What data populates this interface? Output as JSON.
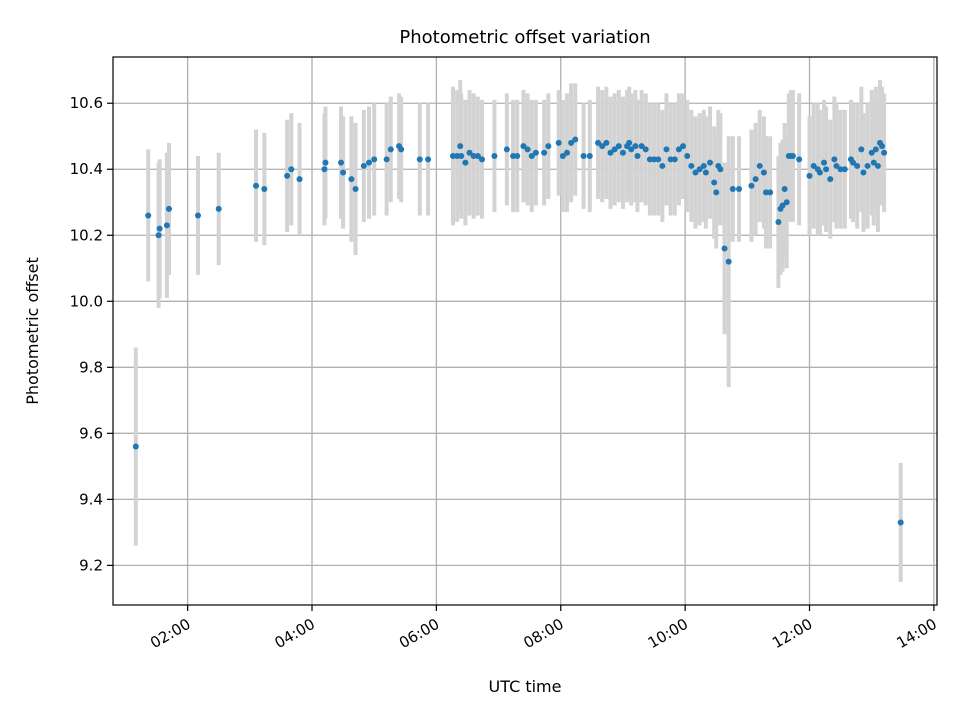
{
  "chart_data": {
    "type": "scatter",
    "title": "Photometric offset variation",
    "xlabel": "UTC time",
    "ylabel": "Photometric offset",
    "x_tick_labels": [
      "02:00",
      "04:00",
      "06:00",
      "08:00",
      "10:00",
      "12:00",
      "14:00"
    ],
    "y_tick_labels": [
      "9.2",
      "9.4",
      "9.6",
      "9.8",
      "10.0",
      "10.2",
      "10.4",
      "10.6"
    ],
    "x_ticks_hours": [
      2,
      4,
      6,
      8,
      10,
      12,
      14
    ],
    "y_ticks": [
      9.2,
      9.4,
      9.6,
      9.8,
      10.0,
      10.2,
      10.4,
      10.6
    ],
    "xlim_hours": [
      0.8,
      14.05
    ],
    "ylim": [
      9.08,
      10.74
    ],
    "grid": true,
    "colors": {
      "point": "#1f77b4",
      "errorbar": "#d3d3d3",
      "grid": "#b0b0b0"
    },
    "series": [
      {
        "x": [
          "01:10",
          "01:22",
          "01:32",
          "01:33",
          "01:40",
          "01:42",
          "02:10",
          "02:30",
          "03:06",
          "03:14",
          "03:36",
          "03:40",
          "03:48",
          "04:12",
          "04:13",
          "04:28",
          "04:30",
          "04:38",
          "04:42",
          "04:50",
          "04:55",
          "05:00",
          "05:12",
          "05:16",
          "05:24",
          "05:26",
          "05:44",
          "05:52",
          "06:16",
          "06:20",
          "06:23",
          "06:24",
          "06:28",
          "06:32",
          "06:36",
          "06:40",
          "06:44",
          "06:56",
          "07:08",
          "07:14",
          "07:18",
          "07:24",
          "07:28",
          "07:32",
          "07:36",
          "07:44",
          "07:48",
          "07:58",
          "08:02",
          "08:06",
          "08:10",
          "08:14",
          "08:22",
          "08:28",
          "08:36",
          "08:40",
          "08:44",
          "08:48",
          "08:52",
          "08:56",
          "09:00",
          "09:04",
          "09:06",
          "09:08",
          "09:12",
          "09:14",
          "09:18",
          "09:22",
          "09:26",
          "09:30",
          "09:34",
          "09:38",
          "09:42",
          "09:46",
          "09:50",
          "09:54",
          "09:58",
          "10:02",
          "10:06",
          "10:10",
          "10:14",
          "10:18",
          "10:20",
          "10:24",
          "10:28",
          "10:30",
          "10:32",
          "10:34",
          "10:38",
          "10:42",
          "10:46",
          "10:52",
          "11:04",
          "11:08",
          "11:12",
          "11:16",
          "11:18",
          "11:22",
          "11:30",
          "11:32",
          "11:34",
          "11:36",
          "11:38",
          "11:40",
          "11:42",
          "11:44",
          "11:50",
          "12:00",
          "12:04",
          "12:08",
          "12:10",
          "12:14",
          "12:16",
          "12:20",
          "12:24",
          "12:26",
          "12:30",
          "12:34",
          "12:40",
          "12:42",
          "12:46",
          "12:50",
          "12:52",
          "12:56",
          "13:00",
          "13:02",
          "13:04",
          "13:06",
          "13:08",
          "13:10",
          "13:12",
          "13:28"
        ],
        "y": [
          9.56,
          10.26,
          10.2,
          10.22,
          10.23,
          10.28,
          10.26,
          10.28,
          10.35,
          10.34,
          10.38,
          10.4,
          10.37,
          10.4,
          10.42,
          10.42,
          10.39,
          10.37,
          10.34,
          10.41,
          10.42,
          10.43,
          10.43,
          10.46,
          10.47,
          10.46,
          10.43,
          10.43,
          10.44,
          10.44,
          10.47,
          10.44,
          10.42,
          10.45,
          10.44,
          10.44,
          10.43,
          10.44,
          10.46,
          10.44,
          10.44,
          10.47,
          10.46,
          10.44,
          10.45,
          10.45,
          10.47,
          10.48,
          10.44,
          10.45,
          10.48,
          10.49,
          10.44,
          10.44,
          10.48,
          10.47,
          10.48,
          10.45,
          10.46,
          10.47,
          10.45,
          10.47,
          10.48,
          10.46,
          10.47,
          10.44,
          10.47,
          10.46,
          10.43,
          10.43,
          10.43,
          10.41,
          10.46,
          10.43,
          10.43,
          10.46,
          10.47,
          10.44,
          10.41,
          10.39,
          10.4,
          10.41,
          10.39,
          10.42,
          10.36,
          10.33,
          10.41,
          10.4,
          10.16,
          10.12,
          10.34,
          10.34,
          10.35,
          10.37,
          10.41,
          10.39,
          10.33,
          10.33,
          10.24,
          10.28,
          10.29,
          10.34,
          10.3,
          10.44,
          10.44,
          10.44,
          10.43,
          10.38,
          10.41,
          10.4,
          10.39,
          10.42,
          10.4,
          10.37,
          10.43,
          10.41,
          10.4,
          10.4,
          10.43,
          10.42,
          10.41,
          10.46,
          10.39,
          10.41,
          10.45,
          10.42,
          10.46,
          10.41,
          10.48,
          10.47,
          10.45,
          9.33
        ],
        "err": [
          0.3,
          0.2,
          0.22,
          0.21,
          0.22,
          0.2,
          0.18,
          0.17,
          0.17,
          0.17,
          0.17,
          0.17,
          0.17,
          0.17,
          0.17,
          0.17,
          0.17,
          0.19,
          0.2,
          0.17,
          0.17,
          0.17,
          0.17,
          0.16,
          0.16,
          0.16,
          0.17,
          0.17,
          0.21,
          0.2,
          0.2,
          0.19,
          0.19,
          0.19,
          0.19,
          0.18,
          0.18,
          0.17,
          0.17,
          0.17,
          0.17,
          0.17,
          0.17,
          0.17,
          0.16,
          0.16,
          0.16,
          0.16,
          0.17,
          0.18,
          0.18,
          0.17,
          0.16,
          0.17,
          0.17,
          0.17,
          0.17,
          0.17,
          0.17,
          0.17,
          0.17,
          0.17,
          0.17,
          0.17,
          0.17,
          0.17,
          0.17,
          0.17,
          0.17,
          0.17,
          0.17,
          0.17,
          0.17,
          0.17,
          0.17,
          0.17,
          0.16,
          0.17,
          0.17,
          0.17,
          0.17,
          0.17,
          0.17,
          0.17,
          0.17,
          0.17,
          0.17,
          0.17,
          0.26,
          0.38,
          0.16,
          0.16,
          0.17,
          0.17,
          0.17,
          0.17,
          0.17,
          0.17,
          0.2,
          0.2,
          0.2,
          0.2,
          0.2,
          0.19,
          0.2,
          0.2,
          0.2,
          0.18,
          0.19,
          0.2,
          0.19,
          0.19,
          0.19,
          0.18,
          0.19,
          0.19,
          0.18,
          0.18,
          0.18,
          0.18,
          0.19,
          0.19,
          0.18,
          0.19,
          0.19,
          0.19,
          0.19,
          0.2,
          0.19,
          0.18,
          0.18,
          0.18
        ]
      }
    ]
  }
}
